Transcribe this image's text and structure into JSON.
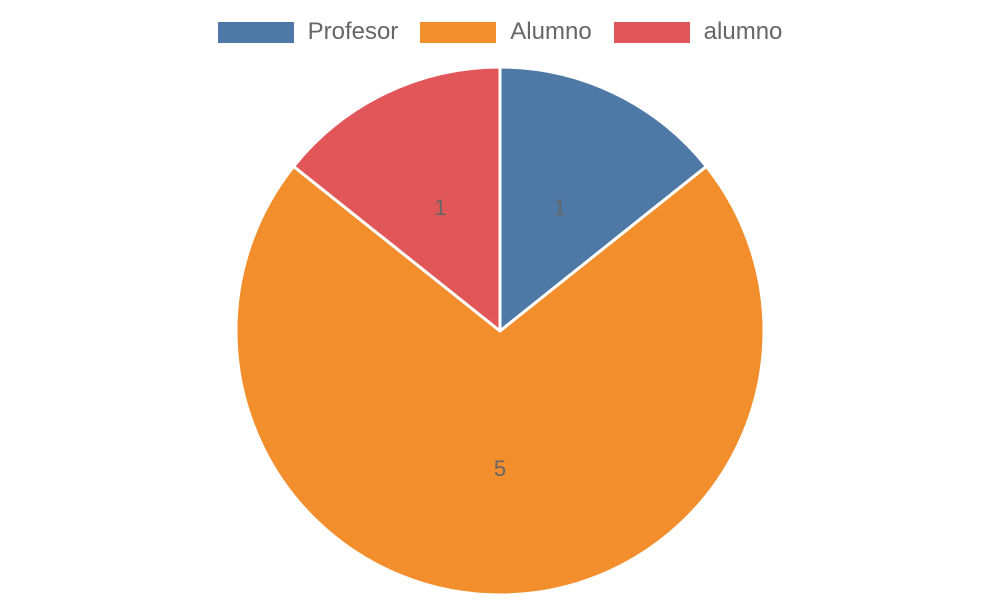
{
  "chart_data": {
    "type": "pie",
    "title": "",
    "legend_position": "top",
    "slices": [
      {
        "label": "Profesor",
        "value": 1,
        "color": "#4e79a7"
      },
      {
        "label": "Alumno",
        "value": 5,
        "color": "#f28e2c"
      },
      {
        "label": "alumno",
        "value": 1,
        "color": "#e15759"
      }
    ]
  }
}
